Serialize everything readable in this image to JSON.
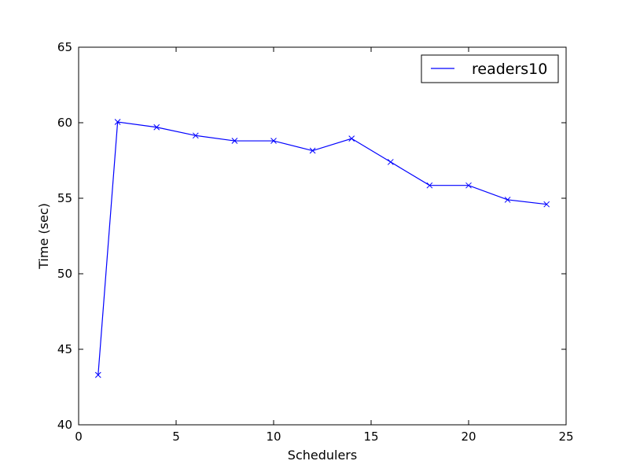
{
  "chart_data": {
    "type": "line",
    "xlabel": "Schedulers",
    "ylabel": "Time (sec)",
    "xlim": [
      0,
      25
    ],
    "ylim": [
      40,
      65
    ],
    "xticks": [
      0,
      5,
      10,
      15,
      20,
      25
    ],
    "yticks": [
      40,
      45,
      50,
      55,
      60,
      65
    ],
    "grid": false,
    "legend_position": "top-right",
    "series": [
      {
        "name": "readers10",
        "color": "#0000ff",
        "marker": "x",
        "x": [
          1,
          2,
          4,
          6,
          8,
          10,
          12,
          14,
          16,
          18,
          20,
          22,
          24
        ],
        "y": [
          43.3,
          60.05,
          59.7,
          59.15,
          58.8,
          58.8,
          58.15,
          58.95,
          57.4,
          55.85,
          55.85,
          54.9,
          54.6
        ]
      }
    ]
  }
}
